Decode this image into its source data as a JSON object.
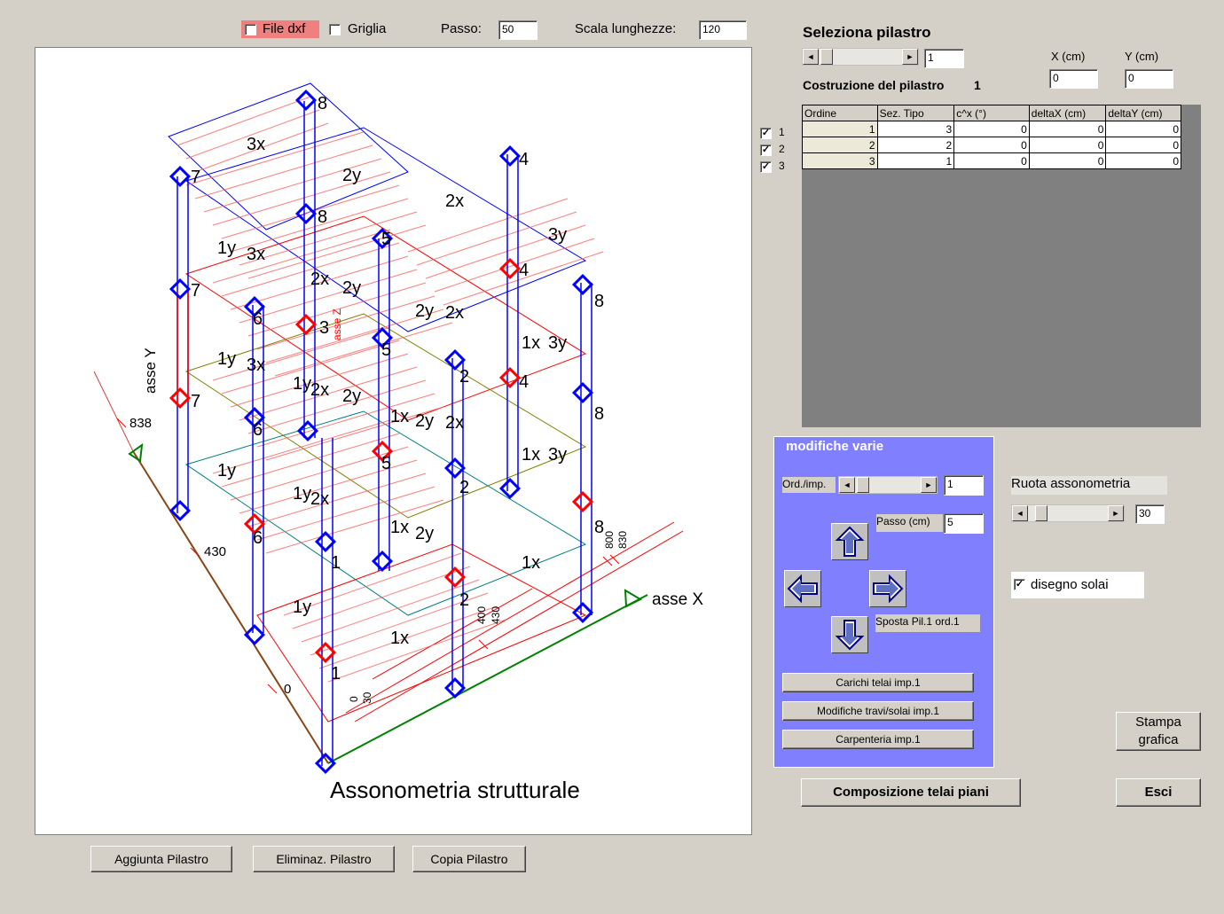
{
  "topbar": {
    "file_dxf_label": "File dxf",
    "griglia_label": "Griglia",
    "passo_label": "Passo:",
    "passo_value": "50",
    "scala_label": "Scala lunghezze:",
    "scala_value": "120"
  },
  "canvas": {
    "title": "Assonometria strutturale",
    "axis_x_label": "asse X",
    "axis_y_label": "asse Y",
    "axis_z_label": "asse Z",
    "dim_labels": [
      "838",
      "430",
      "0",
      "0",
      "30",
      "400",
      "430",
      "800",
      "830"
    ],
    "pillar_labels": [
      "8",
      "7",
      "6",
      "5",
      "4",
      "3",
      "2",
      "1"
    ],
    "beam_labels": [
      "3x",
      "2y",
      "2x",
      "1y",
      "3y",
      "1x"
    ]
  },
  "bottom_buttons": {
    "add": "Aggiunta Pilastro",
    "delete": "Eliminaz. Pilastro",
    "copy": "Copia Pilastro"
  },
  "select_panel": {
    "title": "Seleziona pilastro",
    "pillar_number": "1",
    "x_label": "X (cm)",
    "y_label": "Y (cm)",
    "x_value": "0",
    "y_value": "0",
    "construction_label": "Costruzione del pilastro",
    "construction_number": "1"
  },
  "table": {
    "headers": [
      "Ordine",
      "Sez. Tipo",
      "c^x (°)",
      "deltaX (cm)",
      "deltaY (cm)"
    ],
    "rows": [
      {
        "check": "1",
        "cells": [
          "1",
          "3",
          "0",
          "0",
          "0"
        ]
      },
      {
        "check": "2",
        "cells": [
          "2",
          "2",
          "0",
          "0",
          "0"
        ]
      },
      {
        "check": "3",
        "cells": [
          "3",
          "1",
          "0",
          "0",
          "0"
        ]
      }
    ]
  },
  "modifiche": {
    "title": "modifiche  varie",
    "ord_label": "Ord./imp.",
    "ord_value": "1",
    "passo_label": "Passo (cm)",
    "passo_value": "5",
    "sposta_label": "Sposta Pil.1 ord.1",
    "carichi": "Carichi telai imp.1",
    "modifiche_travi": "Modifiche travi/solai imp.1",
    "carpenteria": "Carpenteria imp.1"
  },
  "rotate": {
    "label": "Ruota assonometria",
    "value": "30"
  },
  "disegno_solai": "disegno solai",
  "stampa": "Stampa grafica",
  "composizione": "Composizione  telai piani",
  "esci": "Esci",
  "colors": {
    "canvas_bg": "#ffffff",
    "panel_bg": "#d4d0c8",
    "group_bg": "#8080ff",
    "grid_dark": "#808080",
    "red": "#ff0000",
    "blue": "#0000ff",
    "green": "#008000",
    "brown": "#8b4513"
  }
}
